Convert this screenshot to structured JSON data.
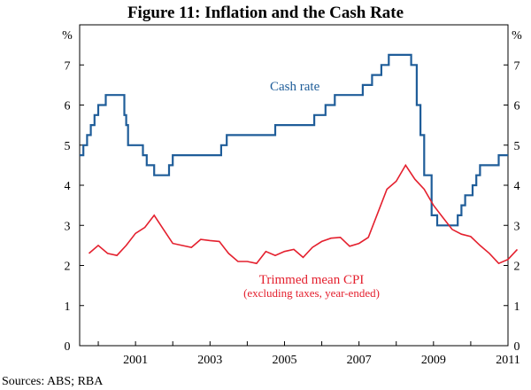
{
  "chart_data": {
    "type": "line",
    "title": "Figure 11: Inflation and the Cash Rate",
    "left_unit": "%",
    "right_unit": "%",
    "y_ticks": [
      "0",
      "1",
      "2",
      "3",
      "4",
      "5",
      "6",
      "7"
    ],
    "ylim": [
      0,
      8
    ],
    "x_ticks": [
      "2001",
      "2003",
      "2005",
      "2007",
      "2009",
      "2011"
    ],
    "xlim": [
      1999.5,
      2011.0
    ],
    "grid": false,
    "source": "Sources:  ABS; RBA",
    "colors": {
      "cash_rate": "#1f5d99",
      "cpi": "#e4202e"
    },
    "series": [
      {
        "name": "Cash rate",
        "style": "step",
        "points": [
          [
            1999.5,
            4.75
          ],
          [
            1999.6,
            5.0
          ],
          [
            1999.7,
            5.25
          ],
          [
            1999.8,
            5.5
          ],
          [
            1999.9,
            5.75
          ],
          [
            2000.0,
            6.0
          ],
          [
            2000.2,
            6.25
          ],
          [
            2000.7,
            5.75
          ],
          [
            2000.75,
            5.5
          ],
          [
            2000.8,
            5.0
          ],
          [
            2001.2,
            4.75
          ],
          [
            2001.3,
            4.5
          ],
          [
            2001.5,
            4.25
          ],
          [
            2001.9,
            4.5
          ],
          [
            2002.0,
            4.75
          ],
          [
            2003.3,
            5.0
          ],
          [
            2003.45,
            5.25
          ],
          [
            2004.75,
            5.5
          ],
          [
            2005.8,
            5.75
          ],
          [
            2006.1,
            6.0
          ],
          [
            2006.35,
            6.25
          ],
          [
            2007.1,
            6.5
          ],
          [
            2007.35,
            6.75
          ],
          [
            2007.6,
            7.0
          ],
          [
            2007.8,
            7.25
          ],
          [
            2008.4,
            7.0
          ],
          [
            2008.55,
            6.0
          ],
          [
            2008.65,
            5.25
          ],
          [
            2008.75,
            4.25
          ],
          [
            2008.95,
            3.25
          ],
          [
            2009.1,
            3.0
          ],
          [
            2009.65,
            3.25
          ],
          [
            2009.75,
            3.5
          ],
          [
            2009.85,
            3.75
          ],
          [
            2010.05,
            4.0
          ],
          [
            2010.15,
            4.25
          ],
          [
            2010.25,
            4.5
          ],
          [
            2010.75,
            4.75
          ],
          [
            2011.0,
            4.75
          ]
        ]
      },
      {
        "name": "Trimmed mean CPI",
        "style": "line",
        "points": [
          [
            1999.75,
            2.3
          ],
          [
            2000.0,
            2.5
          ],
          [
            2000.25,
            2.3
          ],
          [
            2000.5,
            2.25
          ],
          [
            2000.75,
            2.5
          ],
          [
            2001.0,
            2.8
          ],
          [
            2001.25,
            2.95
          ],
          [
            2001.5,
            3.25
          ],
          [
            2001.75,
            2.9
          ],
          [
            2002.0,
            2.55
          ],
          [
            2002.25,
            2.5
          ],
          [
            2002.5,
            2.45
          ],
          [
            2002.75,
            2.65
          ],
          [
            2003.0,
            2.62
          ],
          [
            2003.25,
            2.6
          ],
          [
            2003.5,
            2.3
          ],
          [
            2003.75,
            2.1
          ],
          [
            2004.0,
            2.1
          ],
          [
            2004.25,
            2.05
          ],
          [
            2004.5,
            2.35
          ],
          [
            2004.75,
            2.25
          ],
          [
            2005.0,
            2.35
          ],
          [
            2005.25,
            2.4
          ],
          [
            2005.5,
            2.2
          ],
          [
            2005.75,
            2.45
          ],
          [
            2006.0,
            2.6
          ],
          [
            2006.25,
            2.68
          ],
          [
            2006.5,
            2.7
          ],
          [
            2006.75,
            2.48
          ],
          [
            2007.0,
            2.55
          ],
          [
            2007.25,
            2.7
          ],
          [
            2007.5,
            3.3
          ],
          [
            2007.75,
            3.9
          ],
          [
            2008.0,
            4.1
          ],
          [
            2008.25,
            4.5
          ],
          [
            2008.5,
            4.15
          ],
          [
            2008.75,
            3.9
          ],
          [
            2009.0,
            3.5
          ],
          [
            2009.25,
            3.2
          ],
          [
            2009.5,
            2.9
          ],
          [
            2009.75,
            2.78
          ],
          [
            2010.0,
            2.72
          ],
          [
            2010.25,
            2.5
          ],
          [
            2010.5,
            2.3
          ],
          [
            2010.75,
            2.05
          ],
          [
            2011.0,
            2.15
          ],
          [
            2011.25,
            2.4
          ]
        ]
      }
    ],
    "labels": {
      "cash": "Cash rate",
      "cpi": "Trimmed mean CPI",
      "cpi_sub": "(excluding taxes, year-ended)"
    }
  }
}
